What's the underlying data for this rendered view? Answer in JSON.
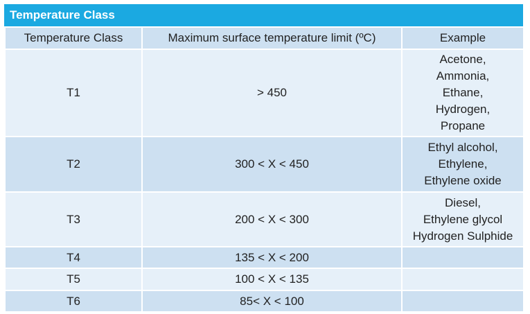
{
  "title": "Temperature Class",
  "table": {
    "header": [
      "Temperature Class",
      "Maximum surface temperature limit (ºC)",
      "Example"
    ],
    "rows": [
      {
        "class": "T1",
        "limit": "> 450",
        "example": [
          "Acetone,",
          "Ammonia,",
          "Ethane,",
          "Hydrogen,",
          "Propane"
        ]
      },
      {
        "class": "T2",
        "limit": "300 < X < 450",
        "example": [
          "Ethyl alcohol,",
          "Ethylene,",
          "Ethylene oxide"
        ]
      },
      {
        "class": "T3",
        "limit": "200 < X < 300",
        "example": [
          "Diesel,",
          "Ethylene glycol",
          "Hydrogen Sulphide"
        ]
      },
      {
        "class": "T4",
        "limit": "135 < X < 200"
      },
      {
        "class": "T5",
        "limit": "100 < X < 135"
      },
      {
        "class": "T6",
        "limit": "85< X < 100"
      }
    ]
  }
}
